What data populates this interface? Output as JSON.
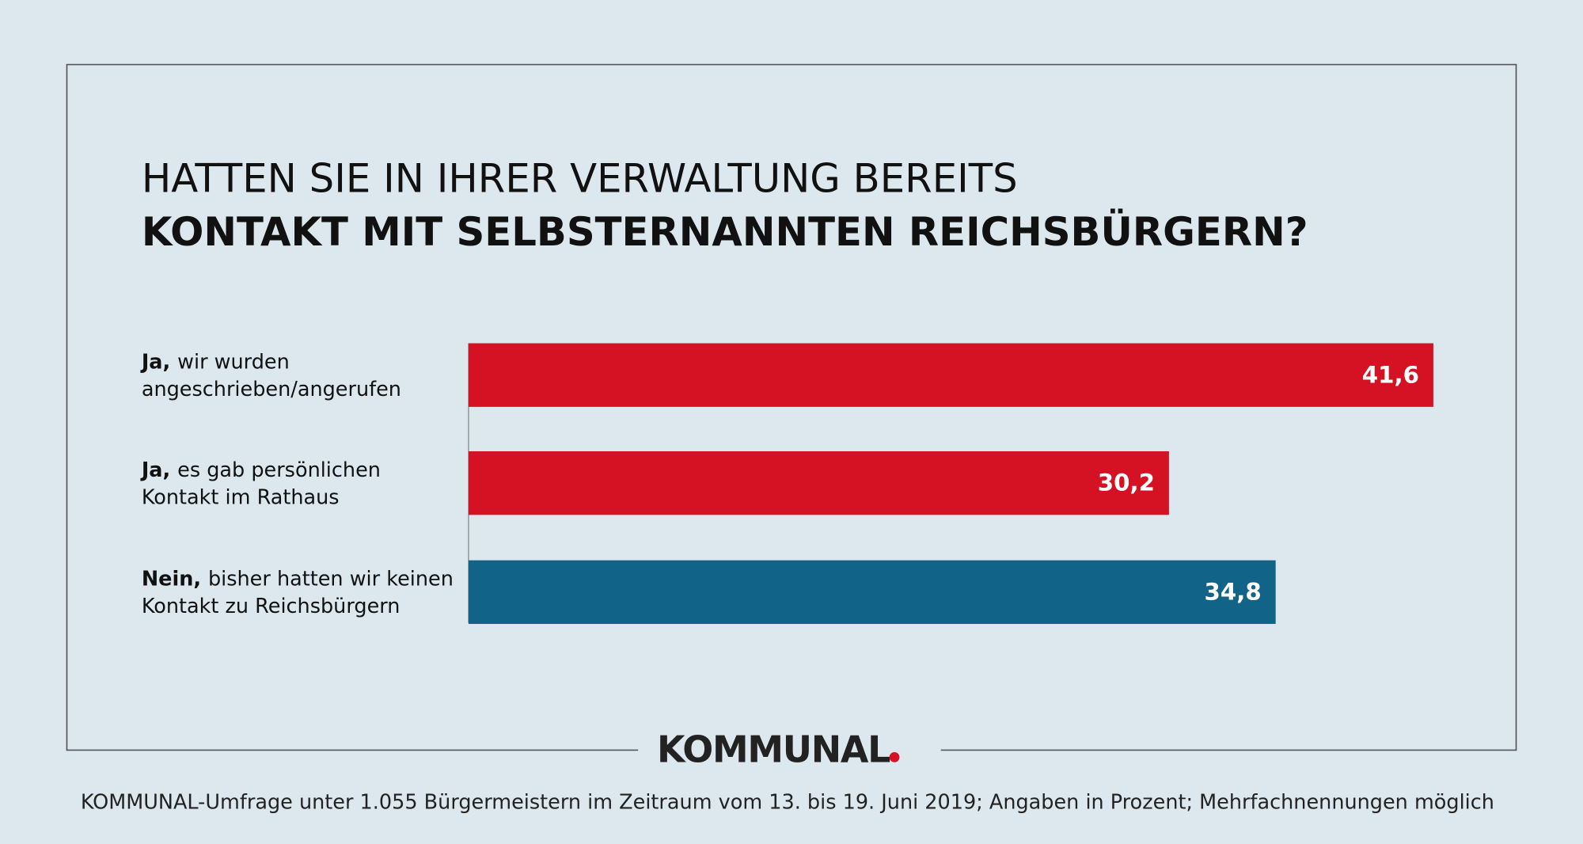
{
  "chart_data": {
    "type": "hbar",
    "title": "HATTEN SIE IN IHRER VERWALTUNG BEREITS",
    "subtitle": "KONTAKT MIT SELBSTERNANNTEN REICHSBÜRGERN?",
    "categories": [
      {
        "lead": "Ja,",
        "line1": "wir wurden",
        "line2": "angeschrieben/angerufen"
      },
      {
        "lead": "Ja,",
        "line1": "es gab persönlichen",
        "line2": "Kontakt im Rathaus"
      },
      {
        "lead": "Nein,",
        "line1": "bisher hatten wir keinen",
        "line2": "Kontakt zu Reichsbürgern"
      }
    ],
    "values": [
      41.6,
      30.2,
      34.8
    ],
    "value_labels": [
      "41,6",
      "30,2",
      "34,8"
    ],
    "colors": [
      "#d41224",
      "#d41224",
      "#116387"
    ],
    "xlim": [
      0,
      45
    ],
    "brand": "KOMMUNAL",
    "note": "KOMMUNAL-Umfrage unter 1.055 Bürgermeistern im Zeitraum vom 13. bis 19. Juni 2019; Angaben in Prozent; Mehrfachnennungen möglich"
  }
}
